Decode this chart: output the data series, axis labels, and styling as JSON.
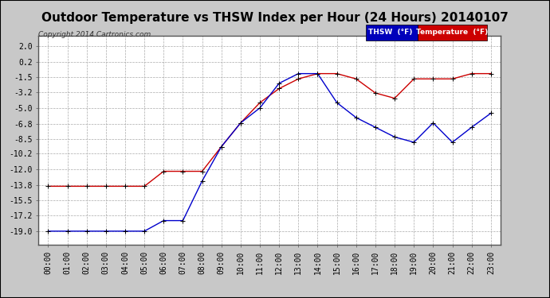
{
  "title": "Outdoor Temperature vs THSW Index per Hour (24 Hours) 20140107",
  "copyright": "Copyright 2014 Cartronics.com",
  "hours": [
    "00:00",
    "01:00",
    "02:00",
    "03:00",
    "04:00",
    "05:00",
    "06:00",
    "07:00",
    "08:00",
    "09:00",
    "10:00",
    "11:00",
    "12:00",
    "13:00",
    "14:00",
    "15:00",
    "16:00",
    "17:00",
    "18:00",
    "19:00",
    "20:00",
    "21:00",
    "22:00",
    "23:00"
  ],
  "temperature": [
    -13.9,
    -13.9,
    -13.9,
    -13.9,
    -13.9,
    -13.9,
    -12.2,
    -12.2,
    -12.2,
    -9.4,
    -6.7,
    -4.4,
    -2.8,
    -1.7,
    -1.1,
    -1.1,
    -1.7,
    -3.3,
    -3.9,
    -1.7,
    -1.7,
    -1.7,
    -1.1,
    -1.1
  ],
  "thsw": [
    -19.0,
    -19.0,
    -19.0,
    -19.0,
    -19.0,
    -19.0,
    -17.8,
    -17.8,
    -13.3,
    -9.4,
    -6.7,
    -5.0,
    -2.2,
    -1.1,
    -1.1,
    -4.4,
    -6.1,
    -7.2,
    -8.3,
    -8.9,
    -6.7,
    -8.9,
    -7.2,
    -5.6
  ],
  "ylim": [
    -20.5,
    3.2
  ],
  "yticks": [
    2.0,
    0.2,
    -1.5,
    -3.2,
    -5.0,
    -6.8,
    -8.5,
    -10.2,
    -12.0,
    -13.8,
    -15.5,
    -17.2,
    -19.0
  ],
  "temp_color": "#cc0000",
  "thsw_color": "#0000cc",
  "bg_color": "#ffffff",
  "plot_bg_color": "#ffffff",
  "grid_color": "#aaaaaa",
  "legend_thsw_bg": "#0000bb",
  "legend_temp_bg": "#cc0000",
  "title_fontsize": 11,
  "tick_fontsize": 7,
  "border_color": "#555555"
}
